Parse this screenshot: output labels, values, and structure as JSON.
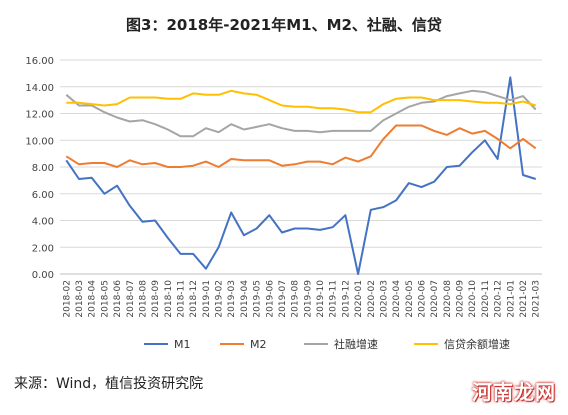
{
  "title": "图3：2018年-2021年M1、M2、社融、信贷",
  "source": "来源：Wind，植信投资研究院",
  "watermark": "河南龙网",
  "chart_data": {
    "type": "line",
    "title": "图3：2018年-2021年M1、M2、社融、信贷",
    "ylim": [
      0,
      16
    ],
    "yticks": [
      "0.00",
      "2.00",
      "4.00",
      "6.00",
      "8.00",
      "10.00",
      "12.00",
      "14.00",
      "16.00"
    ],
    "grid": true,
    "legend_position": "bottom",
    "categories": [
      "2018-02",
      "2018-03",
      "2018-04",
      "2018-05",
      "2018-06",
      "2018-07",
      "2018-08",
      "2018-09",
      "2018-10",
      "2018-11",
      "2018-12",
      "2019-01",
      "2019-02",
      "2019-03",
      "2019-04",
      "2019-05",
      "2019-06",
      "2019-07",
      "2019-08",
      "2019-09",
      "2019-10",
      "2019-11",
      "2019-12",
      "2020-01",
      "2020-02",
      "2020-03",
      "2020-04",
      "2020-05",
      "2020-06",
      "2020-07",
      "2020-08",
      "2020-09",
      "2020-10",
      "2020-11",
      "2020-12",
      "2021-01",
      "2021-02",
      "2021-03"
    ],
    "series": [
      {
        "name": "M1",
        "color": "#4472C4",
        "values": [
          8.5,
          7.1,
          7.2,
          6.0,
          6.6,
          5.1,
          3.9,
          4.0,
          2.7,
          1.5,
          1.5,
          0.4,
          2.0,
          4.6,
          2.9,
          3.4,
          4.4,
          3.1,
          3.4,
          3.4,
          3.3,
          3.5,
          4.4,
          0.0,
          4.8,
          5.0,
          5.5,
          6.8,
          6.5,
          6.9,
          8.0,
          8.1,
          9.1,
          10.0,
          8.6,
          14.7,
          7.4,
          7.1
        ]
      },
      {
        "name": "M2",
        "color": "#ED7D31",
        "values": [
          8.8,
          8.2,
          8.3,
          8.3,
          8.0,
          8.5,
          8.2,
          8.3,
          8.0,
          8.0,
          8.1,
          8.4,
          8.0,
          8.6,
          8.5,
          8.5,
          8.5,
          8.1,
          8.2,
          8.4,
          8.4,
          8.2,
          8.7,
          8.4,
          8.8,
          10.1,
          11.1,
          11.1,
          11.1,
          10.7,
          10.4,
          10.9,
          10.5,
          10.7,
          10.1,
          9.4,
          10.1,
          9.4
        ]
      },
      {
        "name": "社融增速",
        "color": "#A5A5A5",
        "values": [
          13.4,
          12.6,
          12.6,
          12.1,
          11.7,
          11.4,
          11.5,
          11.2,
          10.8,
          10.3,
          10.3,
          10.9,
          10.6,
          11.2,
          10.8,
          11.0,
          11.2,
          10.9,
          10.7,
          10.7,
          10.6,
          10.7,
          10.7,
          10.7,
          10.7,
          11.5,
          12.0,
          12.5,
          12.8,
          12.9,
          13.3,
          13.5,
          13.7,
          13.6,
          13.3,
          13.0,
          13.3,
          12.3
        ]
      },
      {
        "name": "信贷余额增速",
        "color": "#FFC000",
        "values": [
          12.8,
          12.8,
          12.7,
          12.6,
          12.7,
          13.2,
          13.2,
          13.2,
          13.1,
          13.1,
          13.5,
          13.4,
          13.4,
          13.7,
          13.5,
          13.4,
          13.0,
          12.6,
          12.5,
          12.5,
          12.4,
          12.4,
          12.3,
          12.1,
          12.1,
          12.7,
          13.1,
          13.2,
          13.2,
          13.0,
          13.0,
          13.0,
          12.9,
          12.8,
          12.8,
          12.7,
          12.9,
          12.6
        ]
      }
    ]
  }
}
